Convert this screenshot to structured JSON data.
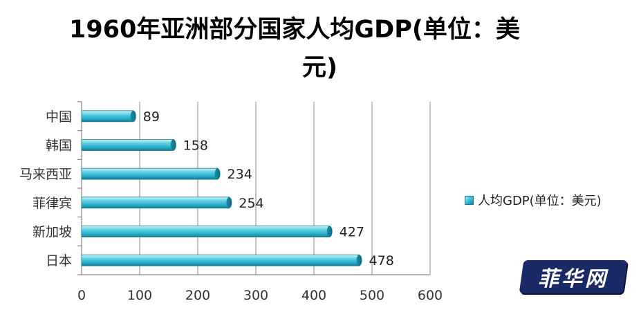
{
  "chart_data": {
    "type": "bar",
    "orientation": "horizontal",
    "title_line1": "1960年亚洲部分国家人均GDP(单位：美",
    "title_line2": "元)",
    "categories": [
      "中国",
      "韩国",
      "马来西亚",
      "菲律宾",
      "新加坡",
      "日本"
    ],
    "series": [
      {
        "name": "人均GDP(单位：美元)",
        "values": [
          89,
          158,
          234,
          254,
          427,
          478
        ],
        "color": "#2fb6cf"
      }
    ],
    "xlim": [
      0,
      600
    ],
    "x_ticks": [
      0,
      100,
      200,
      300,
      400,
      500,
      600
    ],
    "grid": true,
    "legend_position": "right"
  },
  "watermark": {
    "text": "菲华网"
  }
}
